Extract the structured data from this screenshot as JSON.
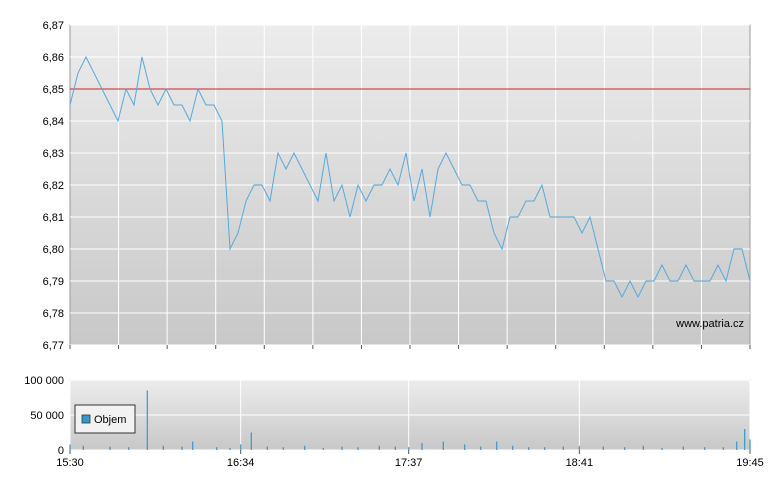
{
  "chart_data": [
    {
      "type": "line",
      "title": "",
      "xlabel": "",
      "ylabel": "",
      "ylim": [
        6.77,
        6.87
      ],
      "y_ticks": [
        "6,87",
        "6,86",
        "6,85",
        "6,84",
        "6,83",
        "6,82",
        "6,81",
        "6,80",
        "6,79",
        "6,78",
        "6,77"
      ],
      "x_range": [
        "15:30",
        "19:45"
      ],
      "reference_line": {
        "value": 6.85,
        "color": "#cc2222"
      },
      "watermark": "www.patria.cz",
      "grid": true,
      "line_color": "#55aadd",
      "series": [
        {
          "x": [
            "15:30",
            "15:33",
            "15:36",
            "15:39",
            "15:42",
            "15:45",
            "15:48",
            "15:51",
            "15:54",
            "15:57",
            "16:00",
            "16:03",
            "16:06",
            "16:09",
            "16:12",
            "16:15",
            "16:18",
            "16:21",
            "16:24",
            "16:27",
            "16:30",
            "16:33",
            "16:36",
            "16:39",
            "16:42",
            "16:45",
            "16:48",
            "16:51",
            "16:54",
            "16:57",
            "17:00",
            "17:03",
            "17:06",
            "17:09",
            "17:12",
            "17:15",
            "17:18",
            "17:21",
            "17:24",
            "17:27",
            "17:30",
            "17:33",
            "17:36",
            "17:39",
            "17:42",
            "17:45",
            "17:48",
            "17:51",
            "17:54",
            "17:57",
            "18:00",
            "18:03",
            "18:06",
            "18:09",
            "18:12",
            "18:15",
            "18:18",
            "18:21",
            "18:24",
            "18:27",
            "18:30",
            "18:33",
            "18:36",
            "18:39",
            "18:42",
            "18:45",
            "18:48",
            "18:51",
            "18:54",
            "18:57",
            "19:00",
            "19:03",
            "19:06",
            "19:09",
            "19:12",
            "19:15",
            "19:18",
            "19:21",
            "19:24",
            "19:27",
            "19:30",
            "19:33",
            "19:36",
            "19:39",
            "19:42",
            "19:45"
          ],
          "values": [
            6.845,
            6.855,
            6.86,
            6.855,
            6.85,
            6.845,
            6.84,
            6.85,
            6.845,
            6.86,
            6.85,
            6.845,
            6.85,
            6.845,
            6.845,
            6.84,
            6.85,
            6.845,
            6.845,
            6.84,
            6.8,
            6.805,
            6.815,
            6.82,
            6.82,
            6.815,
            6.83,
            6.825,
            6.83,
            6.825,
            6.82,
            6.815,
            6.83,
            6.815,
            6.82,
            6.81,
            6.82,
            6.815,
            6.82,
            6.82,
            6.825,
            6.82,
            6.83,
            6.815,
            6.825,
            6.81,
            6.825,
            6.83,
            6.825,
            6.82,
            6.82,
            6.815,
            6.815,
            6.805,
            6.8,
            6.81,
            6.81,
            6.815,
            6.815,
            6.82,
            6.81,
            6.81,
            6.81,
            6.81,
            6.805,
            6.81,
            6.8,
            6.79,
            6.79,
            6.785,
            6.79,
            6.785,
            6.79,
            6.79,
            6.795,
            6.79,
            6.79,
            6.795,
            6.79,
            6.79,
            6.79,
            6.795,
            6.79,
            6.8,
            6.8,
            6.79
          ]
        }
      ]
    },
    {
      "type": "bar",
      "title": "",
      "ylim": [
        0,
        100000
      ],
      "y_ticks": [
        "100 000",
        "50 000",
        "0"
      ],
      "x_ticks": [
        "15:30",
        "16:34",
        "17:37",
        "18:41",
        "19:45"
      ],
      "bar_color": "#3399cc",
      "grid": true,
      "legend": {
        "label": "Objem",
        "color": "#3399cc",
        "placement": "top-left"
      },
      "series": [
        {
          "name": "Objem",
          "x": [
            "15:30",
            "15:35",
            "15:45",
            "15:52",
            "15:59",
            "16:05",
            "16:12",
            "16:16",
            "16:25",
            "16:30",
            "16:34",
            "16:38",
            "16:44",
            "16:50",
            "16:58",
            "17:05",
            "17:12",
            "17:18",
            "17:26",
            "17:32",
            "17:37",
            "17:42",
            "17:50",
            "17:58",
            "18:04",
            "18:10",
            "18:16",
            "18:22",
            "18:28",
            "18:35",
            "18:41",
            "18:50",
            "18:58",
            "19:05",
            "19:12",
            "19:20",
            "19:28",
            "19:35",
            "19:40",
            "19:43",
            "19:45"
          ],
          "values": [
            8000,
            6000,
            5000,
            4000,
            85000,
            6000,
            5000,
            12000,
            4000,
            3000,
            8000,
            25000,
            5000,
            4000,
            6000,
            3000,
            5000,
            4000,
            6000,
            5000,
            4000,
            10000,
            12000,
            8000,
            5000,
            12000,
            6000,
            4000,
            4000,
            5000,
            6000,
            5000,
            4000,
            6000,
            3000,
            5000,
            4000,
            4000,
            12000,
            30000,
            15000
          ]
        }
      ]
    }
  ]
}
